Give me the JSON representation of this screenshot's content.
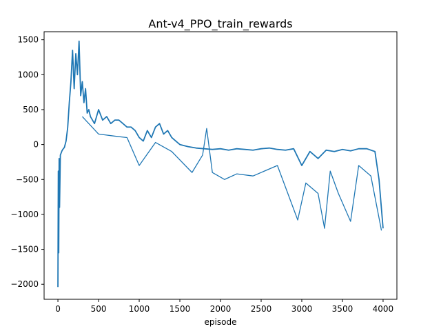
{
  "chart_data": {
    "type": "line",
    "title": "Ant-v4_PPO_train_rewards",
    "xlabel": "episode",
    "ylabel": "",
    "xlim": [
      -170,
      4170
    ],
    "ylim": [
      -2215,
      1615
    ],
    "xticks": [
      0,
      500,
      1000,
      1500,
      2000,
      2500,
      3000,
      3500,
      4000
    ],
    "yticks": [
      -2000,
      -1500,
      -1000,
      -500,
      0,
      500,
      1000,
      1500
    ],
    "grid": false,
    "legend": "none",
    "series": [
      {
        "color": "#1f77b4",
        "x": [
          0,
          5,
          10,
          15,
          20,
          30,
          40,
          50,
          60,
          80,
          100,
          120,
          140,
          160,
          180,
          200,
          220,
          240,
          260,
          280,
          300,
          320,
          340,
          360,
          380,
          400,
          450,
          500,
          550,
          600,
          650,
          700,
          750,
          800,
          850,
          900,
          950,
          1000,
          1050,
          1100,
          1150,
          1200,
          1250,
          1300,
          1350,
          1400,
          1450,
          1500,
          1600,
          1700,
          1800,
          1900,
          2000,
          2100,
          2200,
          2300,
          2400,
          2500,
          2600,
          2700,
          2800,
          2900,
          3000,
          3100,
          3200,
          3300,
          3400,
          3500,
          3600,
          3700,
          3800,
          3900,
          3950,
          4000
        ],
        "y": [
          -2040,
          -380,
          -1550,
          -200,
          -900,
          -150,
          -120,
          -90,
          -70,
          -40,
          50,
          240,
          600,
          900,
          1350,
          800,
          1300,
          1000,
          1480,
          700,
          900,
          600,
          800,
          450,
          500,
          400,
          300,
          500,
          350,
          400,
          300,
          350,
          350,
          300,
          250,
          250,
          200,
          100,
          50,
          200,
          100,
          250,
          300,
          150,
          200,
          100,
          50,
          0,
          -30,
          -50,
          -60,
          -70,
          -60,
          -80,
          -60,
          -70,
          -80,
          -60,
          -50,
          -70,
          -80,
          -60,
          -300,
          -100,
          -200,
          -80,
          -100,
          -70,
          -90,
          -60,
          -60,
          -100,
          -500,
          -1200
        ]
      },
      {
        "color": "#1f77b4",
        "x": [
          300,
          500,
          700,
          850,
          1000,
          1200,
          1400,
          1650,
          1780,
          1830,
          1900,
          2050,
          2200,
          2400,
          2700,
          2950,
          3050,
          3200,
          3280,
          3350,
          3450,
          3600,
          3700,
          3850,
          3980
        ],
        "y": [
          400,
          150,
          120,
          100,
          -300,
          30,
          -100,
          -400,
          -150,
          230,
          -400,
          -500,
          -420,
          -450,
          -300,
          -1080,
          -550,
          -700,
          -1200,
          -380,
          -700,
          -1100,
          -300,
          -450,
          -1230
        ]
      }
    ]
  }
}
